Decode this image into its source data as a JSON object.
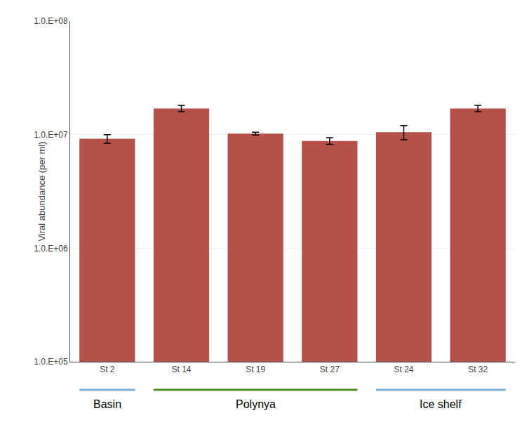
{
  "chart_data": {
    "type": "bar",
    "categories": [
      "St 2",
      "St 14",
      "St 19",
      "St 27",
      "St 24",
      "St 32"
    ],
    "values": [
      9200000.0,
      17000000.0,
      10200000.0,
      8800000.0,
      10500000.0,
      17000000.0
    ],
    "errors": [
      800000.0,
      1100000.0,
      300000.0,
      600000.0,
      1500000.0,
      1100000.0
    ],
    "color": "#b5504a",
    "ylabel": "Viral abundance (per ml)",
    "log": "y",
    "ylim": [
      100000,
      100000000
    ],
    "yticks": [
      {
        "value": 100000,
        "label": "1.0.E+05"
      },
      {
        "value": 1000000,
        "label": "1.0.E+06"
      },
      {
        "value": 10000000,
        "label": "1.0.E+07"
      },
      {
        "value": 100000000,
        "label": "1.0.E+08"
      }
    ],
    "grid": true,
    "groups": [
      {
        "label": "Basin",
        "categories": [
          "St 2"
        ],
        "color": "#7bafd4"
      },
      {
        "label": "Polynya",
        "categories": [
          "St 14",
          "St 19",
          "St 27"
        ],
        "color": "#4e8c2a"
      },
      {
        "label": "Ice shelf",
        "categories": [
          "St 24",
          "St 32"
        ],
        "color": "#7bafd4"
      }
    ]
  }
}
